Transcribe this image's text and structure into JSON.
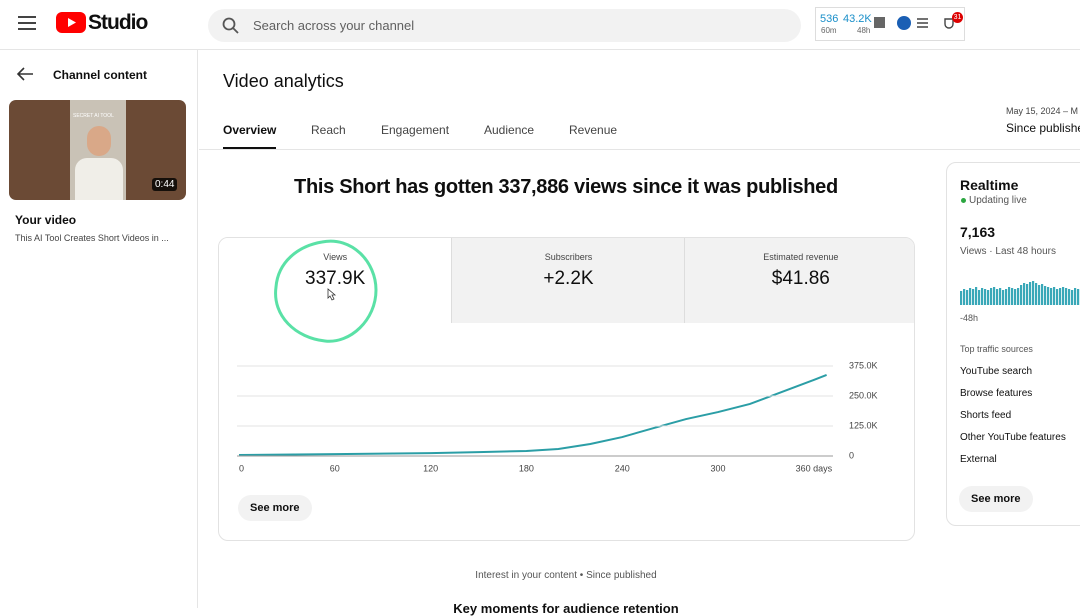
{
  "header": {
    "logo": "Studio",
    "search_placeholder": "Search across your channel",
    "stats": [
      {
        "value": "536",
        "label": "60m"
      },
      {
        "value": "43.2K",
        "label": "48h"
      }
    ],
    "badge": "31"
  },
  "sidebar": {
    "back_label": "Channel content",
    "thumbnail_text": "SECRET AI TOOL",
    "duration": "0:44",
    "your_video": "Your video",
    "video_title": "This AI Tool Creates Short Videos in ..."
  },
  "page": {
    "title": "Video analytics",
    "tabs": [
      "Overview",
      "Reach",
      "Engagement",
      "Audience",
      "Revenue"
    ],
    "date_range": "May 15, 2024 – M",
    "date_label": "Since publishe",
    "headline": "This Short has gotten 337,886 views since it was published",
    "see_more": "See more",
    "footer": "Interest in your content • Since published",
    "next_section": "Key moments for audience retention"
  },
  "metrics": [
    {
      "label": "Views",
      "value": "337.9K"
    },
    {
      "label": "Subscribers",
      "value": "+2.2K"
    },
    {
      "label": "Estimated revenue",
      "value": "$41.86"
    }
  ],
  "realtime": {
    "title": "Realtime",
    "live": "Updating live",
    "count": "7,163",
    "subtitle": "Views · Last 48 hours",
    "axis_label": "-48h",
    "sources_title": "Top traffic sources",
    "sources": [
      "YouTube search",
      "Browse features",
      "Shorts feed",
      "Other YouTube features",
      "External"
    ],
    "see_more": "See more"
  },
  "chart_data": [
    {
      "type": "line",
      "color": "#2b9ea6",
      "x": [
        0,
        60,
        120,
        150,
        180,
        200,
        220,
        240,
        260,
        280,
        300,
        320,
        340,
        360,
        368
      ],
      "values": [
        4000,
        8000,
        12000,
        16000,
        21000,
        29000,
        50000,
        79000,
        117000,
        154000,
        183000,
        217000,
        267000,
        317000,
        337886
      ],
      "xlim": [
        0,
        372
      ],
      "xticks": [
        0,
        60,
        120,
        180,
        240,
        300,
        {
          "value": 360,
          "label": "360 days"
        }
      ],
      "ylim": [
        0,
        375000
      ],
      "yticks": [
        0,
        {
          "value": 125000,
          "label": "125.0K"
        },
        {
          "value": 250000,
          "label": "250.0K"
        },
        {
          "value": 375000,
          "label": "375.0K"
        }
      ],
      "grid": true
    },
    {
      "type": "bar",
      "color": "#3aa8b8",
      "values": [
        14,
        16,
        15,
        17,
        16,
        18,
        15,
        17,
        16,
        15,
        17,
        18,
        16,
        17,
        15,
        16,
        18,
        17,
        16,
        17,
        20,
        22,
        21,
        23,
        24,
        22,
        20,
        21,
        19,
        18,
        17,
        18,
        16,
        17,
        18,
        17,
        16,
        15,
        17,
        16
      ]
    }
  ]
}
